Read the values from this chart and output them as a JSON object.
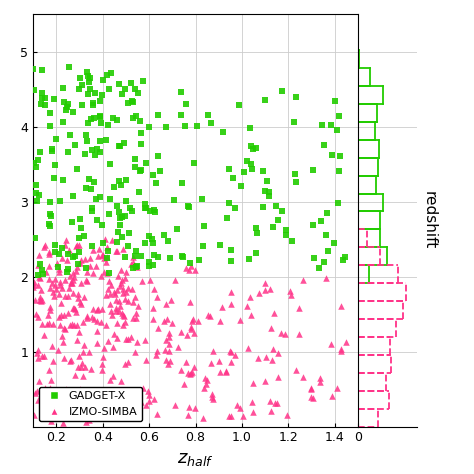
{
  "xlim": [
    0.1,
    1.5
  ],
  "ylim_main": [
    0.0,
    5.5
  ],
  "xlabel": "z_{half}",
  "ylabel": "redshift",
  "gadget_color": "#22cc00",
  "simba_color": "#ff3388",
  "legend_labels": [
    "GADGET-X",
    "IZMO-SIMBA"
  ],
  "xticks": [
    0.2,
    0.4,
    0.6,
    0.8,
    1.0,
    1.2,
    1.4
  ],
  "yticks": [
    1,
    2,
    3,
    4,
    5
  ],
  "figsize": [
    4.74,
    4.74
  ],
  "dpi": 100
}
